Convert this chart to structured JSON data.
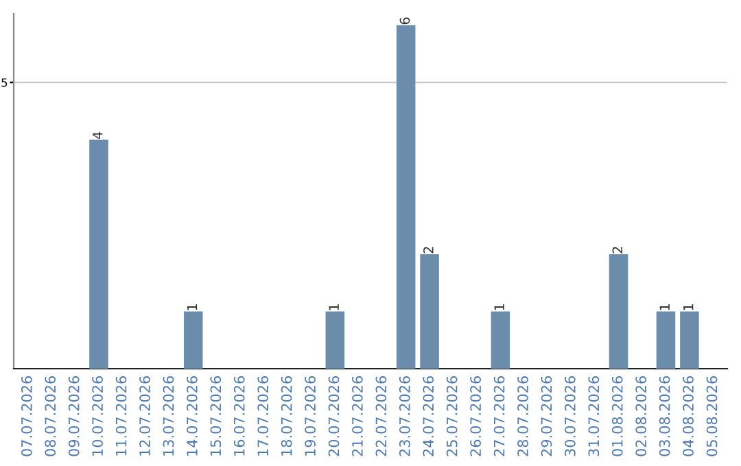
{
  "chart_data": {
    "type": "bar",
    "categories": [
      "07.07.2026",
      "08.07.2026",
      "09.07.2026",
      "10.07.2026",
      "11.07.2026",
      "12.07.2026",
      "13.07.2026",
      "14.07.2026",
      "15.07.2026",
      "16.07.2026",
      "17.07.2026",
      "18.07.2026",
      "19.07.2026",
      "20.07.2026",
      "21.07.2026",
      "22.07.2026",
      "23.07.2026",
      "24.07.2026",
      "25.07.2026",
      "26.07.2026",
      "27.07.2026",
      "28.07.2026",
      "29.07.2026",
      "30.07.2026",
      "31.07.2026",
      "01.08.2026",
      "02.08.2026",
      "03.08.2026",
      "04.08.2026",
      "05.08.2026"
    ],
    "values": [
      0,
      0,
      0,
      4,
      0,
      0,
      0,
      1,
      0,
      0,
      0,
      0,
      0,
      1,
      0,
      0,
      6,
      2,
      0,
      0,
      1,
      0,
      0,
      0,
      0,
      2,
      0,
      1,
      1,
      0
    ],
    "value_labels": [
      null,
      null,
      null,
      "4",
      null,
      null,
      null,
      "1",
      null,
      null,
      null,
      null,
      null,
      "1",
      null,
      null,
      "6",
      "2",
      null,
      null,
      "1",
      null,
      null,
      null,
      null,
      "2",
      null,
      "1",
      "1",
      null
    ],
    "color": "#6b8cab",
    "ylim": [
      0,
      6.2
    ],
    "yticks": [
      5
    ],
    "grid": "y"
  }
}
